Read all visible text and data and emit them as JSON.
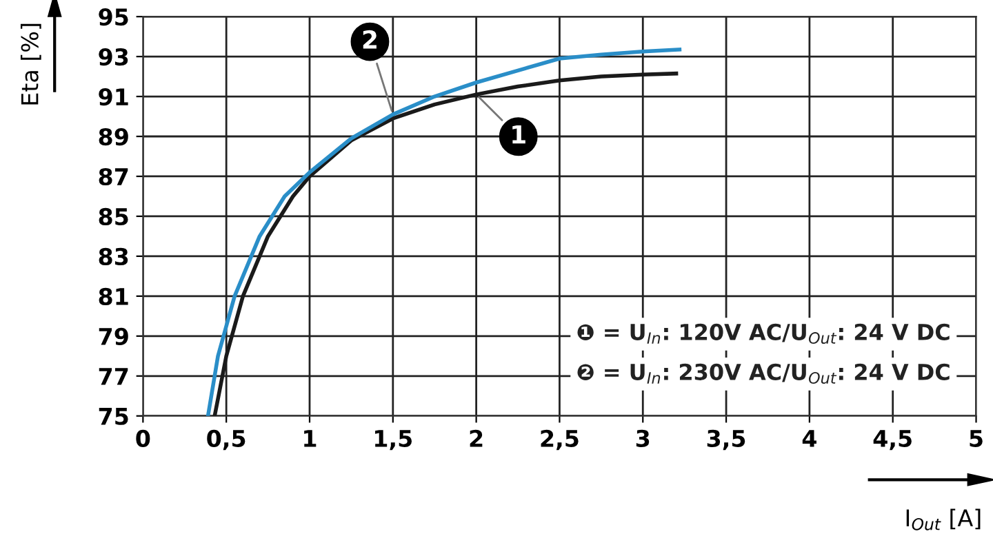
{
  "chart_data": {
    "type": "line",
    "xlabel": "I$_{Out}$ [A]",
    "ylabel": "Eta [%]",
    "xlim": [
      0,
      5
    ],
    "xticks": [
      0,
      {
        "value": 0.5,
        "label": "0,5"
      },
      1,
      {
        "value": 1.5,
        "label": "1,5"
      },
      2,
      {
        "value": 2.5,
        "label": "2,5"
      },
      3,
      {
        "value": 3.5,
        "label": "3,5"
      },
      4,
      {
        "value": 4.5,
        "label": "4,5"
      },
      5
    ],
    "ylim": [
      75,
      95
    ],
    "yticks": [
      75,
      77,
      79,
      81,
      83,
      85,
      87,
      89,
      91,
      93,
      95
    ],
    "grid": true,
    "marker": "none",
    "line_style": "solid",
    "series": [
      {
        "name": "1",
        "color": "#1a1a1a",
        "x": [
          0.43,
          0.5,
          0.6,
          0.75,
          0.9,
          1.0,
          1.25,
          1.5,
          1.75,
          2.0,
          2.25,
          2.5,
          2.75,
          3.0,
          3.2
        ],
        "values": [
          75,
          78,
          81,
          84,
          86,
          87,
          88.8,
          89.9,
          90.6,
          91.1,
          91.5,
          91.8,
          92.0,
          92.1,
          92.15
        ]
      },
      {
        "name": "2",
        "color": "#2a8ec8",
        "x": [
          0.39,
          0.45,
          0.55,
          0.7,
          0.85,
          1.0,
          1.25,
          1.5,
          1.75,
          2.0,
          2.25,
          2.5,
          2.75,
          3.0,
          3.22
        ],
        "values": [
          75,
          78,
          81,
          84,
          86,
          87.2,
          88.9,
          90.1,
          91.0,
          91.7,
          92.3,
          92.9,
          93.1,
          93.25,
          93.35
        ]
      }
    ],
    "annotations": [
      "❶ = U$_{In}$: 120V AC/U$_{Out}$: 24 V DC",
      "❷ = U$_{In}$: 230V AC/U$_{Out}$: 24 V DC"
    ]
  }
}
